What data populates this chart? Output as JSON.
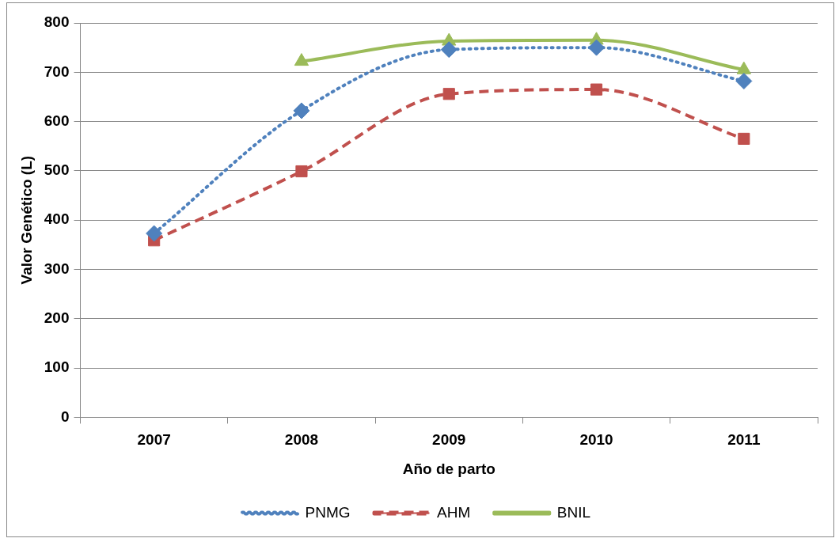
{
  "chart_data": {
    "type": "line",
    "xlabel": "Año de parto",
    "ylabel": "Valor Genético (L)",
    "categories": [
      "2007",
      "2008",
      "2009",
      "2010",
      "2011"
    ],
    "series": [
      {
        "name": "PNMG",
        "color": "#4f81bd",
        "marker": "diamond",
        "line_style": "dotted",
        "values": [
          373,
          622,
          746,
          750,
          682
        ]
      },
      {
        "name": "AHM",
        "color": "#c0504d",
        "marker": "square",
        "line_style": "dashed",
        "values": [
          359,
          499,
          656,
          665,
          565
        ]
      },
      {
        "name": "BNIL",
        "color": "#9bbb59",
        "marker": "triangle",
        "line_style": "solid",
        "values": [
          null,
          722,
          763,
          765,
          705
        ]
      }
    ],
    "ylim": [
      0,
      800
    ],
    "yticks": [
      0,
      100,
      200,
      300,
      400,
      500,
      600,
      700,
      800
    ],
    "grid": "y",
    "legend": "bottom"
  }
}
